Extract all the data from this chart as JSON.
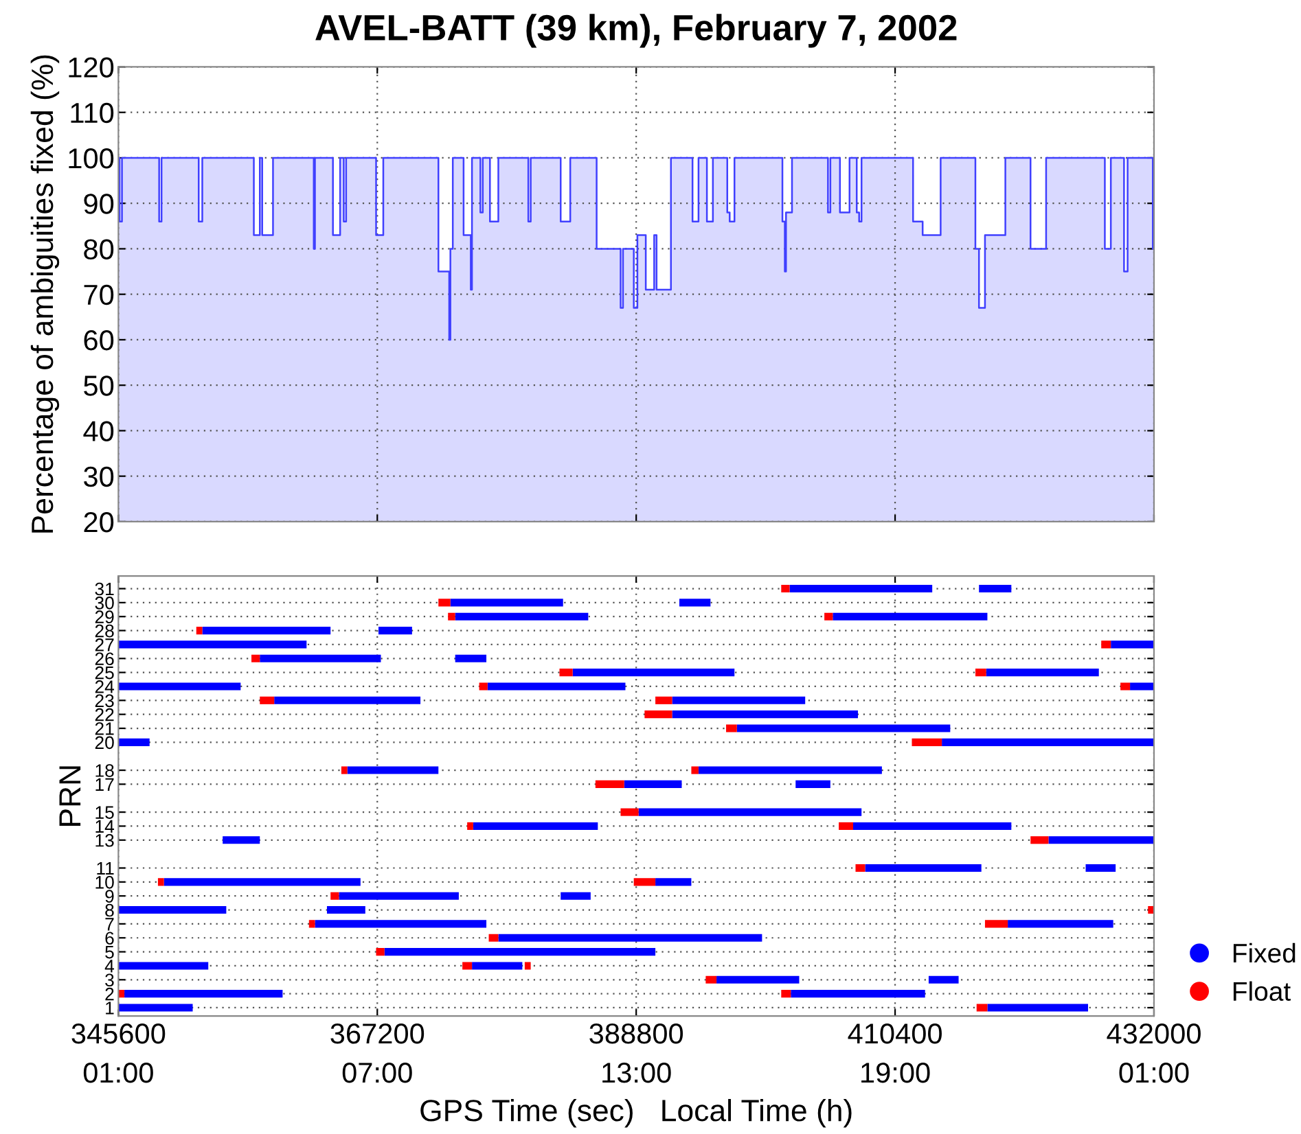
{
  "chart_data": [
    {
      "type": "area",
      "title": "AVEL-BATT (39 km), February 7, 2002",
      "ylabel": "Percentage of ambiguities fixed (%)",
      "xlim": [
        345600,
        432000
      ],
      "xticks": [
        345600,
        367200,
        388800,
        410400,
        432000
      ],
      "ylim": [
        20,
        120
      ],
      "yticks": [
        20,
        30,
        40,
        50,
        60,
        70,
        80,
        90,
        100,
        110,
        120
      ],
      "grid": true,
      "tick_labels": "y",
      "series": [
        {
          "color": "#4040ff",
          "x": [
            345600,
            345700,
            345700,
            345900,
            345900,
            349000,
            349000,
            349200,
            349200,
            352300,
            352300,
            352600,
            352600,
            356900,
            356900,
            357400,
            357400,
            357600,
            357600,
            358500,
            358500,
            361900,
            361900,
            362000,
            362000,
            363500,
            363500,
            364100,
            364100,
            364400,
            364400,
            364600,
            364600,
            367100,
            367100,
            367700,
            367700,
            372300,
            372300,
            373200,
            373200,
            373300,
            373300,
            373500,
            373500,
            374400,
            374400,
            375000,
            375000,
            375100,
            375100,
            375800,
            375800,
            376000,
            376000,
            376600,
            376600,
            377300,
            377300,
            379800,
            379800,
            380000,
            380000,
            382500,
            382500,
            383300,
            383300,
            385500,
            385500,
            387500,
            387500,
            387700,
            387700,
            388600,
            388600,
            388900,
            388900,
            389600,
            389600,
            390300,
            390300,
            390500,
            390500,
            391700,
            391700,
            393500,
            393500,
            394000,
            394000,
            394700,
            394700,
            395200,
            395200,
            396400,
            396400,
            396600,
            396600,
            397000,
            397000,
            401000,
            401000,
            401200,
            401200,
            401300,
            401300,
            401800,
            401800,
            404800,
            404800,
            405000,
            405000,
            405800,
            405800,
            406600,
            406600,
            407200,
            407200,
            407400,
            407400,
            407600,
            407600,
            411900,
            411900,
            412700,
            412700,
            414200,
            414200,
            417100,
            417100,
            417400,
            417400,
            417900,
            417900,
            419600,
            419600,
            421700,
            421700,
            423000,
            423000,
            427900,
            427900,
            428400,
            428400,
            429500,
            429500,
            429800,
            429800,
            431900,
            431900,
            432000
          ],
          "values": [
            100,
            100,
            86,
            86,
            100,
            100,
            86,
            86,
            100,
            100,
            86,
            86,
            100,
            100,
            83,
            83,
            100,
            100,
            83,
            83,
            100,
            100,
            80,
            80,
            100,
            100,
            83,
            83,
            100,
            100,
            86,
            86,
            100,
            100,
            83,
            83,
            100,
            100,
            75,
            75,
            60,
            60,
            80,
            80,
            100,
            100,
            83,
            83,
            71,
            71,
            100,
            100,
            88,
            88,
            100,
            100,
            86,
            86,
            100,
            100,
            86,
            86,
            100,
            100,
            86,
            86,
            100,
            100,
            80,
            80,
            67,
            67,
            80,
            80,
            67,
            67,
            83,
            83,
            71,
            71,
            83,
            83,
            71,
            71,
            100,
            100,
            86,
            86,
            100,
            100,
            86,
            86,
            100,
            100,
            88,
            88,
            86,
            86,
            100,
            100,
            86,
            86,
            75,
            75,
            88,
            88,
            100,
            100,
            88,
            88,
            100,
            100,
            88,
            88,
            100,
            100,
            88,
            88,
            86,
            86,
            100,
            100,
            86,
            86,
            83,
            83,
            100,
            100,
            80,
            80,
            67,
            67,
            83,
            83,
            100,
            100,
            80,
            80,
            100,
            100,
            80,
            80,
            100,
            100,
            75,
            75,
            100,
            100,
            80,
            80
          ]
        }
      ]
    },
    {
      "type": "line",
      "ylabel": "PRN",
      "xlabel": "GPS Time (sec)   Local Time (h)",
      "xlim": [
        345600,
        432000
      ],
      "xticks": [
        345600,
        367200,
        388800,
        410400,
        432000
      ],
      "x2lim": [
        "2002-02-07T01:00",
        "2002-02-08T01:00"
      ],
      "x2ticks": [
        {
          "value": "2002-02-07T01:00",
          "label": "01:00"
        },
        {
          "value": "2002-02-07T07:00",
          "label": "07:00"
        },
        {
          "value": "2002-02-07T13:00",
          "label": "13:00"
        },
        {
          "value": "2002-02-07T19:00",
          "label": "19:00"
        },
        {
          "value": "2002-02-08T01:00",
          "label": "01:00"
        }
      ],
      "ylim": [
        0.4,
        31.9
      ],
      "yticks": [
        1,
        2,
        3,
        4,
        5,
        6,
        7,
        8,
        9,
        10,
        11,
        13,
        14,
        15,
        17,
        18,
        20,
        21,
        22,
        23,
        24,
        25,
        26,
        27,
        28,
        29,
        30,
        31
      ],
      "grid": true,
      "legend": "right",
      "series": [
        {
          "name": "Fixed",
          "color": "#0000ff",
          "x": [
            401600,
            413500
          ],
          "values": [
            31,
            31
          ]
        },
        {
          "color": "#0000ff",
          "x": [
            417400,
            420100
          ],
          "values": [
            31,
            31
          ]
        },
        {
          "color": "#0000ff",
          "x": [
            373300,
            382700
          ],
          "values": [
            30,
            30
          ]
        },
        {
          "color": "#0000ff",
          "x": [
            392400,
            395000
          ],
          "values": [
            30,
            30
          ]
        },
        {
          "color": "#0000ff",
          "x": [
            373700,
            384800
          ],
          "values": [
            29,
            29
          ]
        },
        {
          "color": "#0000ff",
          "x": [
            405200,
            418100
          ],
          "values": [
            29,
            29
          ]
        },
        {
          "color": "#0000ff",
          "x": [
            352600,
            363300
          ],
          "values": [
            28,
            28
          ]
        },
        {
          "color": "#0000ff",
          "x": [
            367300,
            370100
          ],
          "values": [
            28,
            28
          ]
        },
        {
          "color": "#0000ff",
          "x": [
            345600,
            361300
          ],
          "values": [
            27,
            27
          ]
        },
        {
          "color": "#0000ff",
          "x": [
            428400,
            432000
          ],
          "values": [
            27,
            27
          ]
        },
        {
          "color": "#0000ff",
          "x": [
            357400,
            367500
          ],
          "values": [
            26,
            26
          ]
        },
        {
          "color": "#0000ff",
          "x": [
            373700,
            376300
          ],
          "values": [
            26,
            26
          ]
        },
        {
          "color": "#0000ff",
          "x": [
            383500,
            397000
          ],
          "values": [
            25,
            25
          ]
        },
        {
          "color": "#0000ff",
          "x": [
            418000,
            427400
          ],
          "values": [
            25,
            25
          ]
        },
        {
          "color": "#0000ff",
          "x": [
            345600,
            355800
          ],
          "values": [
            24,
            24
          ]
        },
        {
          "color": "#0000ff",
          "x": [
            376400,
            387900
          ],
          "values": [
            24,
            24
          ]
        },
        {
          "color": "#0000ff",
          "x": [
            430000,
            432000
          ],
          "values": [
            24,
            24
          ]
        },
        {
          "color": "#0000ff",
          "x": [
            358600,
            370800
          ],
          "values": [
            23,
            23
          ]
        },
        {
          "color": "#0000ff",
          "x": [
            391800,
            402900
          ],
          "values": [
            23,
            23
          ]
        },
        {
          "color": "#0000ff",
          "x": [
            391800,
            407300
          ],
          "values": [
            22,
            22
          ]
        },
        {
          "color": "#0000ff",
          "x": [
            397200,
            415000
          ],
          "values": [
            21,
            21
          ]
        },
        {
          "color": "#0000ff",
          "x": [
            345600,
            348200
          ],
          "values": [
            20,
            20
          ]
        },
        {
          "color": "#0000ff",
          "x": [
            414300,
            432000
          ],
          "values": [
            20,
            20
          ]
        },
        {
          "color": "#0000ff",
          "x": [
            364700,
            372300
          ],
          "values": [
            18,
            18
          ]
        },
        {
          "color": "#0000ff",
          "x": [
            394000,
            409300
          ],
          "values": [
            18,
            18
          ]
        },
        {
          "color": "#0000ff",
          "x": [
            387800,
            392600
          ],
          "values": [
            17,
            17
          ]
        },
        {
          "color": "#0000ff",
          "x": [
            402100,
            405000
          ],
          "values": [
            17,
            17
          ]
        },
        {
          "color": "#0000ff",
          "x": [
            389000,
            407600
          ],
          "values": [
            15,
            15
          ]
        },
        {
          "color": "#0000ff",
          "x": [
            375200,
            385600
          ],
          "values": [
            14,
            14
          ]
        },
        {
          "color": "#0000ff",
          "x": [
            406900,
            420100
          ],
          "values": [
            14,
            14
          ]
        },
        {
          "color": "#0000ff",
          "x": [
            354300,
            357400
          ],
          "values": [
            13,
            13
          ]
        },
        {
          "color": "#0000ff",
          "x": [
            423200,
            432000
          ],
          "values": [
            13,
            13
          ]
        },
        {
          "color": "#0000ff",
          "x": [
            407900,
            417600
          ],
          "values": [
            11,
            11
          ]
        },
        {
          "color": "#0000ff",
          "x": [
            426300,
            428800
          ],
          "values": [
            11,
            11
          ]
        },
        {
          "color": "#0000ff",
          "x": [
            349400,
            365800
          ],
          "values": [
            10,
            10
          ]
        },
        {
          "color": "#0000ff",
          "x": [
            390400,
            393400
          ],
          "values": [
            10,
            10
          ]
        },
        {
          "color": "#0000ff",
          "x": [
            364000,
            374000
          ],
          "values": [
            9,
            9
          ]
        },
        {
          "color": "#0000ff",
          "x": [
            382500,
            385000
          ],
          "values": [
            9,
            9
          ]
        },
        {
          "color": "#0000ff",
          "x": [
            345600,
            354600
          ],
          "values": [
            8,
            8
          ]
        },
        {
          "color": "#0000ff",
          "x": [
            363000,
            366200
          ],
          "values": [
            8,
            8
          ]
        },
        {
          "color": "#0000ff",
          "x": [
            362000,
            376300
          ],
          "values": [
            7,
            7
          ]
        },
        {
          "color": "#0000ff",
          "x": [
            419800,
            428600
          ],
          "values": [
            7,
            7
          ]
        },
        {
          "color": "#0000ff",
          "x": [
            377300,
            399300
          ],
          "values": [
            6,
            6
          ]
        },
        {
          "color": "#0000ff",
          "x": [
            367800,
            390400
          ],
          "values": [
            5,
            5
          ]
        },
        {
          "color": "#0000ff",
          "x": [
            345600,
            353100
          ],
          "values": [
            4,
            4
          ]
        },
        {
          "color": "#0000ff",
          "x": [
            375100,
            379300
          ],
          "values": [
            4,
            4
          ]
        },
        {
          "color": "#0000ff",
          "x": [
            395500,
            402400
          ],
          "values": [
            3,
            3
          ]
        },
        {
          "color": "#0000ff",
          "x": [
            413200,
            415700
          ],
          "values": [
            3,
            3
          ]
        },
        {
          "color": "#0000ff",
          "x": [
            346100,
            359300
          ],
          "values": [
            2,
            2
          ]
        },
        {
          "color": "#0000ff",
          "x": [
            401700,
            412900
          ],
          "values": [
            2,
            2
          ]
        },
        {
          "color": "#0000ff",
          "x": [
            345600,
            351800
          ],
          "values": [
            1,
            1
          ]
        },
        {
          "color": "#0000ff",
          "x": [
            418100,
            426500
          ],
          "values": [
            1,
            1
          ]
        },
        {
          "name": "Float",
          "color": "#ff0000",
          "x": [
            400900,
            401600
          ],
          "values": [
            31,
            31
          ]
        },
        {
          "color": "#ff0000",
          "x": [
            372300,
            373300
          ],
          "values": [
            30,
            30
          ]
        },
        {
          "color": "#ff0000",
          "x": [
            373100,
            373700
          ],
          "values": [
            29,
            29
          ]
        },
        {
          "color": "#ff0000",
          "x": [
            404500,
            405200
          ],
          "values": [
            29,
            29
          ]
        },
        {
          "color": "#ff0000",
          "x": [
            352100,
            352600
          ],
          "values": [
            28,
            28
          ]
        },
        {
          "color": "#ff0000",
          "x": [
            427600,
            428400
          ],
          "values": [
            27,
            27
          ]
        },
        {
          "color": "#ff0000",
          "x": [
            356700,
            357400
          ],
          "values": [
            26,
            26
          ]
        },
        {
          "color": "#ff0000",
          "x": [
            382400,
            383500
          ],
          "values": [
            25,
            25
          ]
        },
        {
          "color": "#ff0000",
          "x": [
            417100,
            418000
          ],
          "values": [
            25,
            25
          ]
        },
        {
          "color": "#ff0000",
          "x": [
            375700,
            376400
          ],
          "values": [
            24,
            24
          ]
        },
        {
          "color": "#ff0000",
          "x": [
            429200,
            430000
          ],
          "values": [
            24,
            24
          ]
        },
        {
          "color": "#ff0000",
          "x": [
            357400,
            358600
          ],
          "values": [
            23,
            23
          ]
        },
        {
          "color": "#ff0000",
          "x": [
            390400,
            391800
          ],
          "values": [
            23,
            23
          ]
        },
        {
          "color": "#ff0000",
          "x": [
            389500,
            391800
          ],
          "values": [
            22,
            22
          ]
        },
        {
          "color": "#ff0000",
          "x": [
            396300,
            397200
          ],
          "values": [
            21,
            21
          ]
        },
        {
          "color": "#ff0000",
          "x": [
            411800,
            414300
          ],
          "values": [
            20,
            20
          ]
        },
        {
          "color": "#ff0000",
          "x": [
            364200,
            364700
          ],
          "values": [
            18,
            18
          ]
        },
        {
          "color": "#ff0000",
          "x": [
            393400,
            394000
          ],
          "values": [
            18,
            18
          ]
        },
        {
          "color": "#ff0000",
          "x": [
            385400,
            387800
          ],
          "values": [
            17,
            17
          ]
        },
        {
          "color": "#ff0000",
          "x": [
            387500,
            389000
          ],
          "values": [
            15,
            15
          ]
        },
        {
          "color": "#ff0000",
          "x": [
            374700,
            375200
          ],
          "values": [
            14,
            14
          ]
        },
        {
          "color": "#ff0000",
          "x": [
            405700,
            406900
          ],
          "values": [
            14,
            14
          ]
        },
        {
          "color": "#ff0000",
          "x": [
            421700,
            423200
          ],
          "values": [
            13,
            13
          ]
        },
        {
          "color": "#ff0000",
          "x": [
            407100,
            407900
          ],
          "values": [
            11,
            11
          ]
        },
        {
          "color": "#ff0000",
          "x": [
            348900,
            349400
          ],
          "values": [
            10,
            10
          ]
        },
        {
          "color": "#ff0000",
          "x": [
            388600,
            390400
          ],
          "values": [
            10,
            10
          ]
        },
        {
          "color": "#ff0000",
          "x": [
            363300,
            364000
          ],
          "values": [
            9,
            9
          ]
        },
        {
          "color": "#ff0000",
          "x": [
            431500,
            432000
          ],
          "values": [
            8,
            8
          ]
        },
        {
          "color": "#ff0000",
          "x": [
            361500,
            362000
          ],
          "values": [
            7,
            7
          ]
        },
        {
          "color": "#ff0000",
          "x": [
            417900,
            419800
          ],
          "values": [
            7,
            7
          ]
        },
        {
          "color": "#ff0000",
          "x": [
            376500,
            377300
          ],
          "values": [
            6,
            6
          ]
        },
        {
          "color": "#ff0000",
          "x": [
            367100,
            367800
          ],
          "values": [
            5,
            5
          ]
        },
        {
          "color": "#ff0000",
          "x": [
            374300,
            375100
          ],
          "values": [
            4,
            4
          ]
        },
        {
          "color": "#ff0000",
          "x": [
            379500,
            380000
          ],
          "values": [
            4,
            4
          ]
        },
        {
          "color": "#ff0000",
          "x": [
            394600,
            395500
          ],
          "values": [
            3,
            3
          ]
        },
        {
          "color": "#ff0000",
          "x": [
            345600,
            346100
          ],
          "values": [
            2,
            2
          ]
        },
        {
          "color": "#ff0000",
          "x": [
            400900,
            401700
          ],
          "values": [
            2,
            2
          ]
        },
        {
          "color": "#ff0000",
          "x": [
            417200,
            418100
          ],
          "values": [
            1,
            1
          ]
        }
      ]
    }
  ]
}
